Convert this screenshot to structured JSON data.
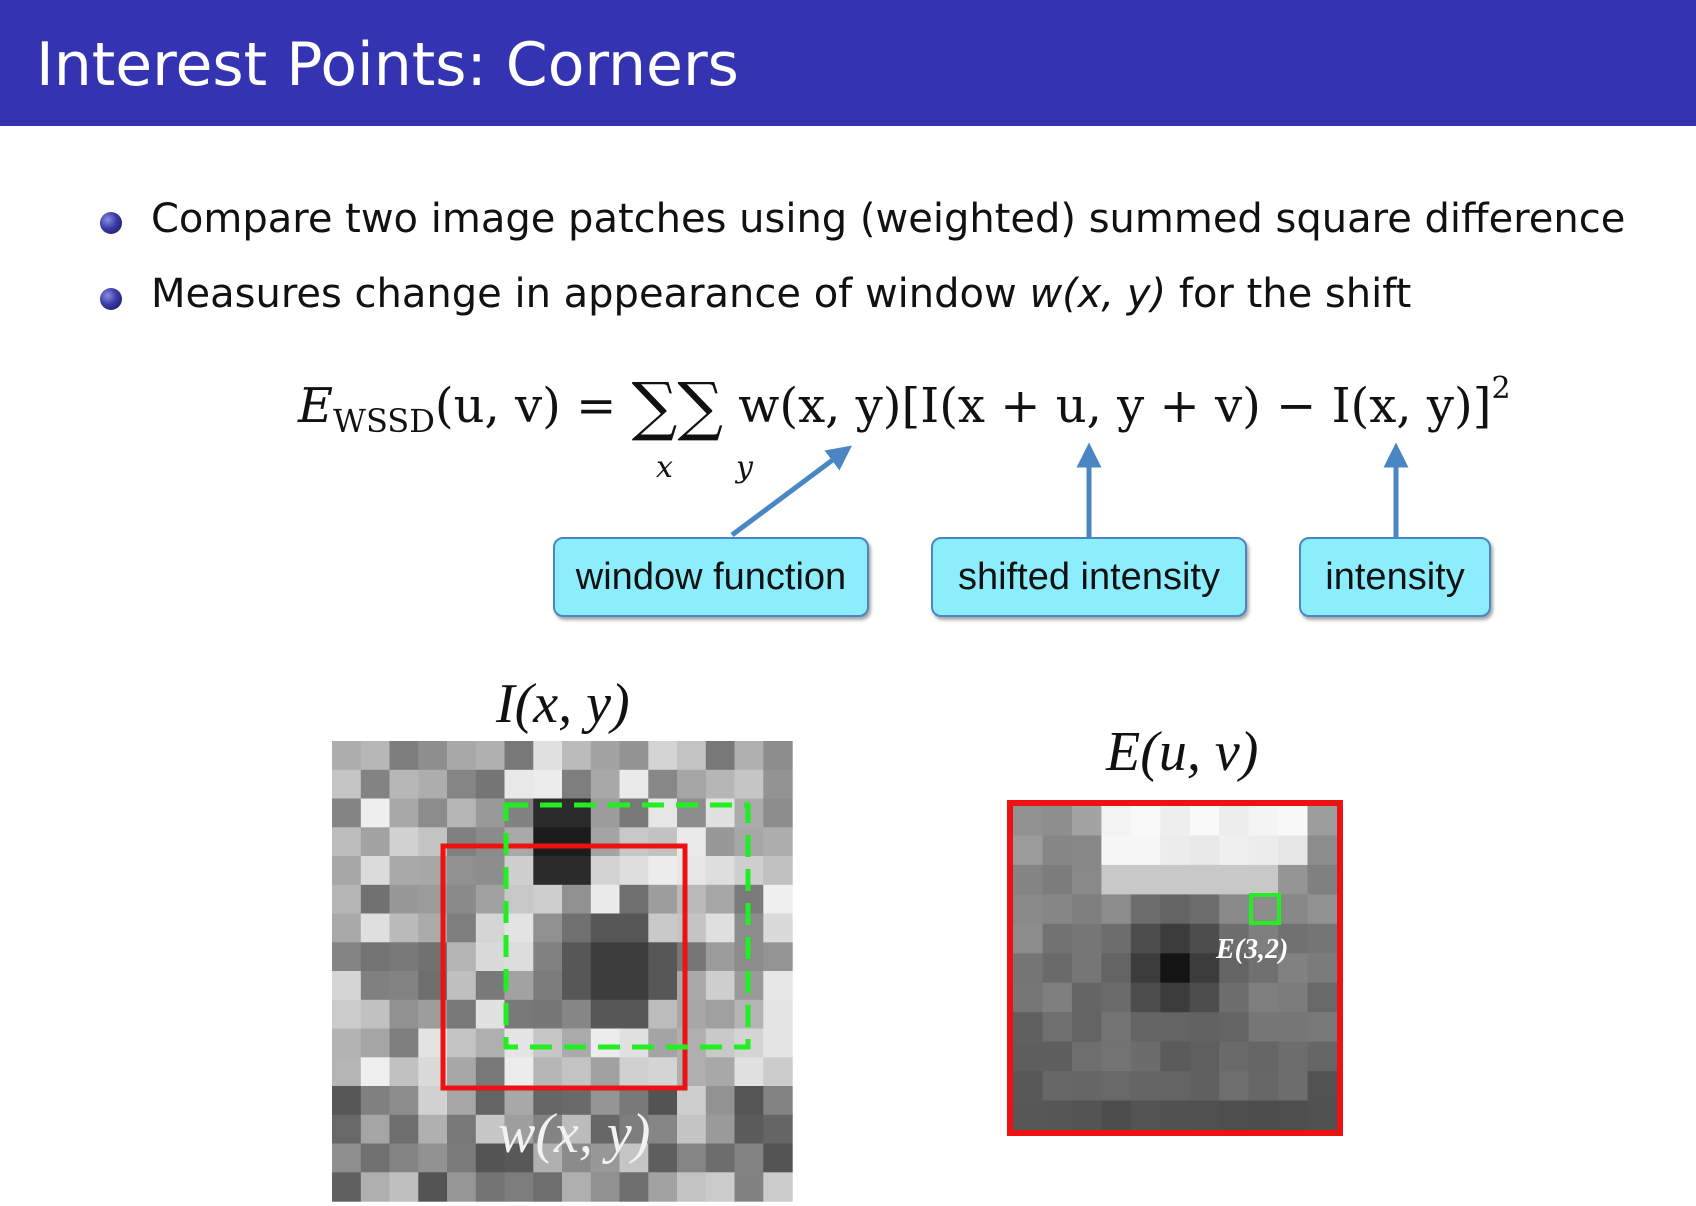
{
  "header": {
    "title": "Interest Points: Corners"
  },
  "bullets": [
    {
      "text": "Compare two image patches using (weighted) summed square difference"
    },
    {
      "pre": "Measures change in appearance of window ",
      "math": "w(x, y)",
      "post": " for the shift"
    }
  ],
  "equation": {
    "lhs_symbol": "E",
    "lhs_subscript": "WSSD",
    "lhs_args": "(u, v)",
    "equals": "=",
    "sum_symbol": "∑",
    "sum_index_1": "x",
    "sum_index_2": "y",
    "rhs": "w(x, y)[I(x + u, y + v) − I(x, y)]",
    "exponent": "2"
  },
  "annotations": {
    "window_function": "window function",
    "shifted_intensity": "shifted intensity",
    "intensity": "intensity"
  },
  "figures": {
    "left_caption": "I(x, y)",
    "left_window_label": "w(x, y)",
    "right_caption": "E(u, v)",
    "right_marker_label": "E(3,2)"
  },
  "colors": {
    "header_bg": "#3434b2",
    "label_box_bg": "#8ceefc",
    "arrow": "#4a86c4",
    "window_red": "#ee1111",
    "window_green": "#22ee22"
  }
}
